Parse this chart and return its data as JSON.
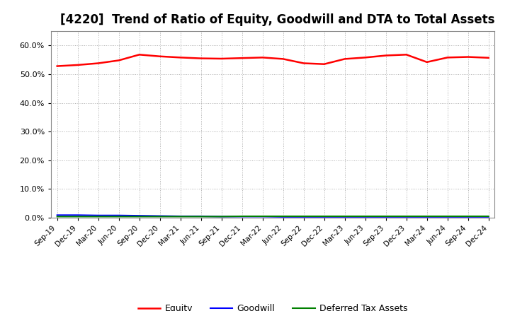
{
  "title": "[4220]  Trend of Ratio of Equity, Goodwill and DTA to Total Assets",
  "x_labels": [
    "Sep-19",
    "Dec-19",
    "Mar-20",
    "Jun-20",
    "Sep-20",
    "Dec-20",
    "Mar-21",
    "Jun-21",
    "Sep-21",
    "Dec-21",
    "Mar-22",
    "Jun-22",
    "Sep-22",
    "Dec-22",
    "Mar-23",
    "Jun-23",
    "Sep-23",
    "Dec-23",
    "Mar-24",
    "Jun-24",
    "Sep-24",
    "Dec-24"
  ],
  "equity": [
    52.8,
    53.2,
    53.8,
    54.8,
    56.8,
    56.2,
    55.8,
    55.5,
    55.4,
    55.6,
    55.8,
    55.3,
    53.8,
    53.5,
    55.3,
    55.8,
    56.5,
    56.8,
    54.2,
    55.8,
    56.0,
    55.7
  ],
  "goodwill": [
    0.9,
    0.9,
    0.8,
    0.8,
    0.7,
    0.6,
    0.5,
    0.5,
    0.4,
    0.4,
    0.4,
    0.3,
    0.3,
    0.3,
    0.3,
    0.3,
    0.3,
    0.3,
    0.3,
    0.3,
    0.3,
    0.3
  ],
  "dta": [
    0.4,
    0.4,
    0.4,
    0.4,
    0.4,
    0.4,
    0.4,
    0.4,
    0.4,
    0.5,
    0.5,
    0.5,
    0.5,
    0.5,
    0.5,
    0.5,
    0.5,
    0.5,
    0.5,
    0.5,
    0.5,
    0.5
  ],
  "equity_color": "#FF0000",
  "goodwill_color": "#0000FF",
  "dta_color": "#008000",
  "ylim": [
    0,
    65
  ],
  "yticks": [
    0.0,
    10.0,
    20.0,
    30.0,
    40.0,
    50.0,
    60.0
  ],
  "background_color": "#FFFFFF",
  "grid_color": "#999999",
  "title_fontsize": 12,
  "legend_labels": [
    "Equity",
    "Goodwill",
    "Deferred Tax Assets"
  ]
}
